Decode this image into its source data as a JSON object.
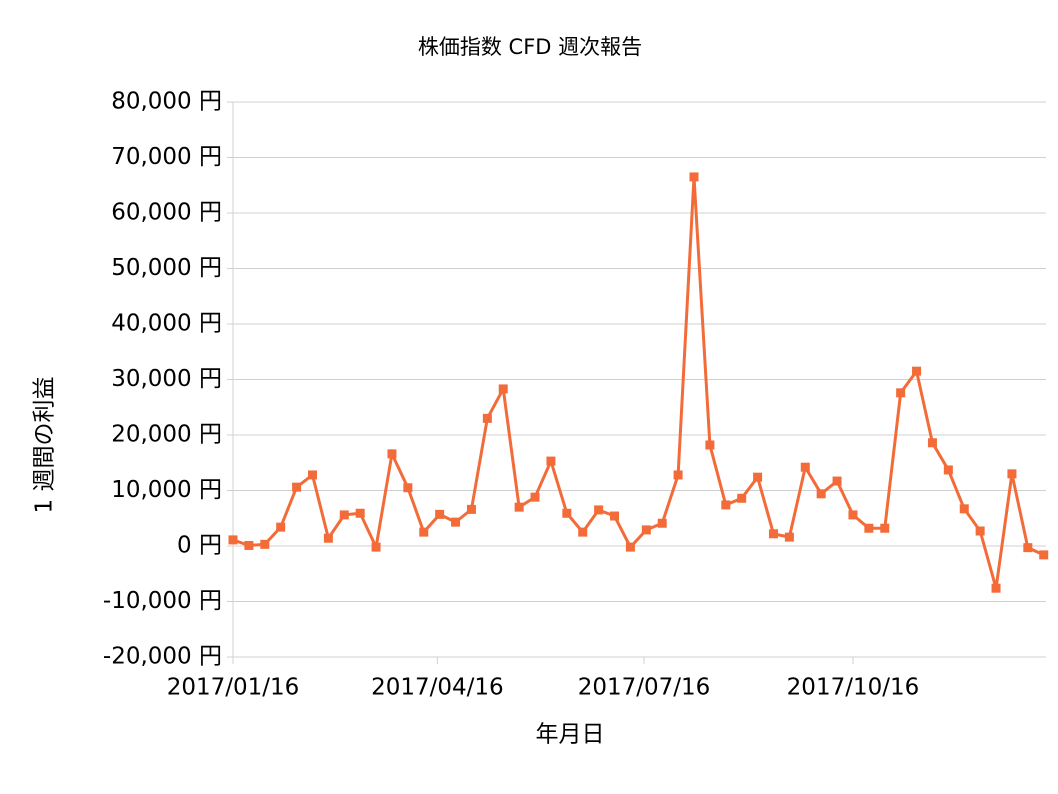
{
  "chart_data": {
    "type": "line",
    "title": "株価指数 CFD 週次報告",
    "x_label": "年月日",
    "y_label": "1 週間の利益",
    "x": [
      "2017/01/16",
      "2017/01/23",
      "2017/01/30",
      "2017/02/06",
      "2017/02/13",
      "2017/02/20",
      "2017/02/27",
      "2017/03/06",
      "2017/03/13",
      "2017/03/20",
      "2017/03/27",
      "2017/04/03",
      "2017/04/10",
      "2017/04/17",
      "2017/04/24",
      "2017/05/01",
      "2017/05/08",
      "2017/05/15",
      "2017/05/22",
      "2017/05/29",
      "2017/06/05",
      "2017/06/12",
      "2017/06/19",
      "2017/06/26",
      "2017/07/03",
      "2017/07/10",
      "2017/07/17",
      "2017/07/24",
      "2017/07/31",
      "2017/08/07",
      "2017/08/14",
      "2017/08/21",
      "2017/08/28",
      "2017/09/04",
      "2017/09/11",
      "2017/09/18",
      "2017/09/25",
      "2017/10/02",
      "2017/10/09",
      "2017/10/16",
      "2017/10/23",
      "2017/10/30",
      "2017/11/06",
      "2017/11/13",
      "2017/11/20",
      "2017/11/27",
      "2017/12/04",
      "2017/12/11",
      "2017/12/18",
      "2017/12/25",
      "2018/01/01",
      "2018/01/08"
    ],
    "series": [
      {
        "name": "1 週間の利益",
        "color": "#f26b38",
        "values": [
          1100,
          100,
          300,
          3400,
          10600,
          12800,
          1400,
          5600,
          5900,
          -200,
          16600,
          10500,
          2500,
          5700,
          4300,
          6600,
          23000,
          28300,
          7000,
          8800,
          15300,
          5900,
          2500,
          6500,
          5400,
          -200,
          2900,
          4100,
          12800,
          66500,
          18200,
          7400,
          8600,
          12400,
          2200,
          1600,
          14200,
          9400,
          11700,
          5600,
          3200,
          3200,
          27600,
          31500,
          18600,
          13700,
          6700,
          2700,
          -7600,
          13000,
          -300,
          -1600
        ]
      }
    ],
    "xlim": [
      "2017/01/16",
      "2018/01/09"
    ],
    "xticks": [
      "2017/01/16",
      "2017/04/16",
      "2017/07/16",
      "2017/10/16"
    ],
    "ylim": [
      -20000,
      80000
    ],
    "yticks": [
      {
        "value": -20000,
        "label": "-20,000 円"
      },
      {
        "value": -10000,
        "label": "-10,000 円"
      },
      {
        "value": 0,
        "label": "0 円"
      },
      {
        "value": 10000,
        "label": "10,000 円"
      },
      {
        "value": 20000,
        "label": "20,000 円"
      },
      {
        "value": 30000,
        "label": "30,000 円"
      },
      {
        "value": 40000,
        "label": "40,000 円"
      },
      {
        "value": 50000,
        "label": "50,000 円"
      },
      {
        "value": 60000,
        "label": "60,000 円"
      },
      {
        "value": 70000,
        "label": "70,000 円"
      },
      {
        "value": 80000,
        "label": "80,000 円"
      }
    ],
    "grid": true,
    "marker": "square"
  }
}
